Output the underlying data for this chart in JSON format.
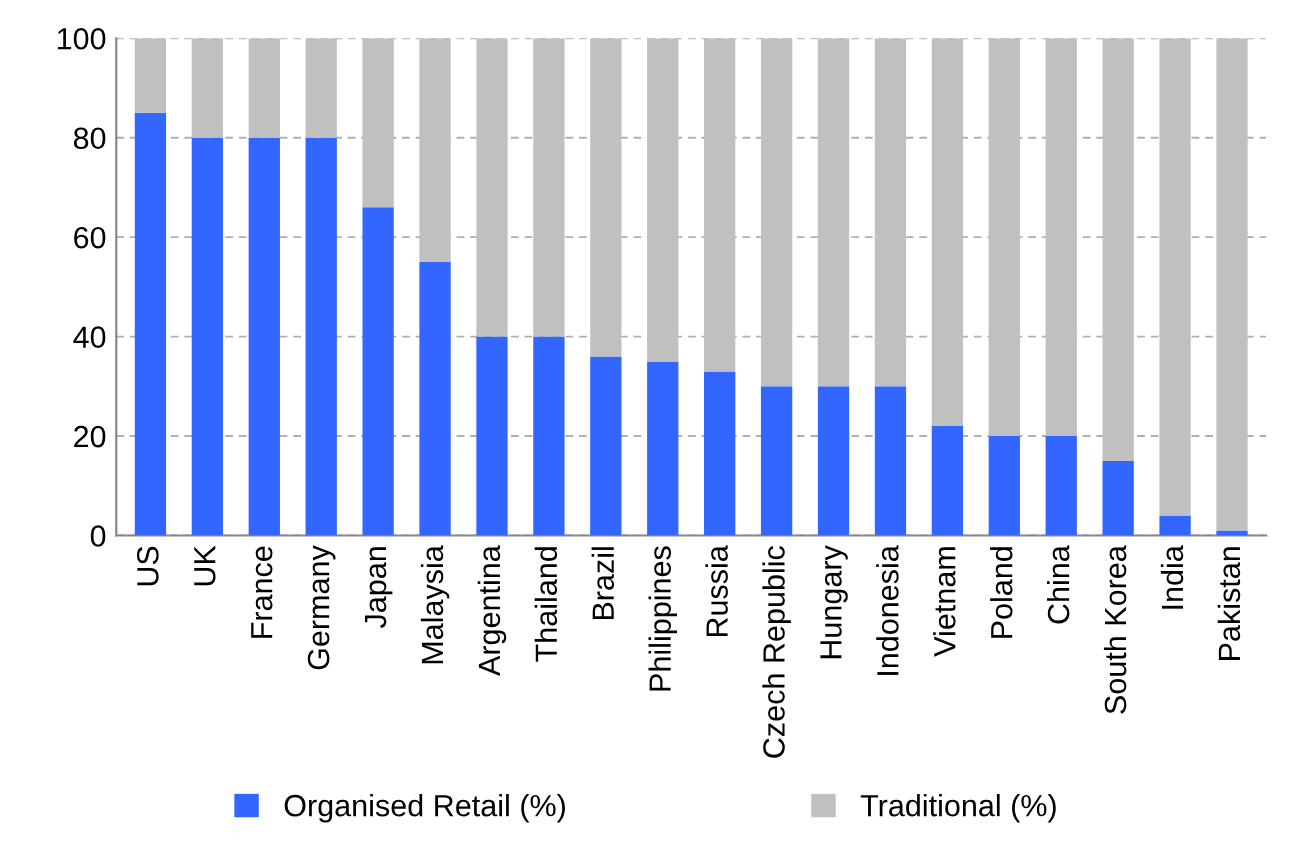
{
  "chart_data": {
    "type": "bar",
    "stacked": true,
    "categories": [
      "US",
      "UK",
      "France",
      "Germany",
      "Japan",
      "Malaysia",
      "Argentina",
      "Thailand",
      "Brazil",
      "Philippines",
      "Russia",
      "Czech Republic",
      "Hungary",
      "Indonesia",
      "Vietnam",
      "Poland",
      "China",
      "South Korea",
      "India",
      "Pakistan"
    ],
    "series": [
      {
        "name": "Organised Retail (%)",
        "color": "#3366ff",
        "values": [
          85,
          80,
          80,
          80,
          66,
          55,
          40,
          40,
          36,
          35,
          33,
          30,
          30,
          30,
          22,
          20,
          20,
          15,
          4,
          1
        ]
      },
      {
        "name": "Traditional (%)",
        "color": "#c0c0c0",
        "values": [
          15,
          20,
          20,
          20,
          34,
          45,
          60,
          60,
          64,
          65,
          67,
          70,
          70,
          70,
          78,
          80,
          80,
          85,
          96,
          99
        ]
      }
    ],
    "ylim": [
      0,
      100
    ],
    "yticks": [
      0,
      20,
      40,
      60,
      80,
      100
    ],
    "grid": "y",
    "legend": "bottom"
  }
}
